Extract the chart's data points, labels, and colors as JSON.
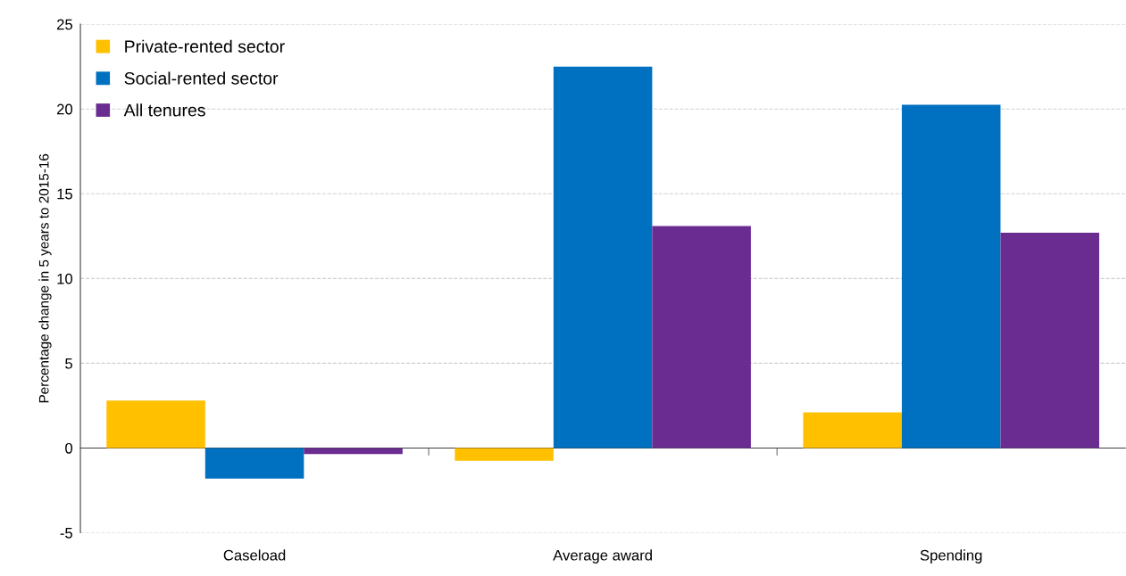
{
  "chart_data": {
    "type": "bar",
    "categories": [
      "Caseload",
      "Average award",
      "Spending"
    ],
    "series": [
      {
        "name": "Private-rented sector",
        "color": "#ffc000",
        "values": [
          2.8,
          -0.75,
          2.1
        ]
      },
      {
        "name": "Social-rented sector",
        "color": "#0070c0",
        "values": [
          -1.8,
          22.5,
          20.25
        ]
      },
      {
        "name": "All tenures",
        "color": "#6a2c91",
        "values": [
          -0.35,
          13.1,
          12.7
        ]
      }
    ],
    "ylabel": "Percentage change in 5 years to 2015-16",
    "ylim": [
      -5,
      25
    ],
    "yticks": [
      -5,
      0,
      5,
      10,
      15,
      20,
      25
    ],
    "grid": "y",
    "legend": "top left"
  }
}
